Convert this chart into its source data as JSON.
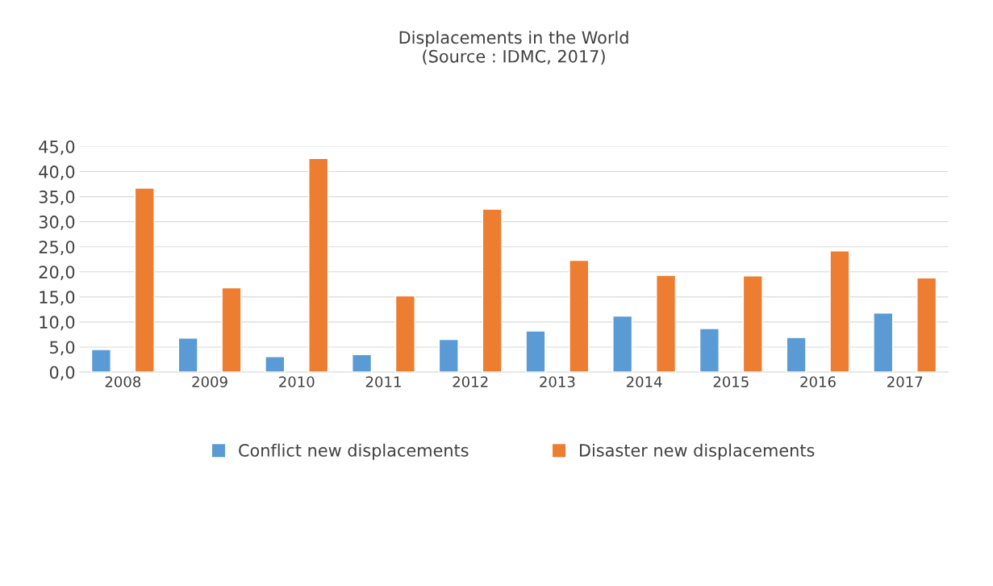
{
  "chart_data": {
    "type": "bar",
    "title": "Displacements in the World\n(Source : IDMC, 2017)",
    "categories": [
      "2008",
      "2009",
      "2010",
      "2011",
      "2012",
      "2013",
      "2014",
      "2015",
      "2016",
      "2017"
    ],
    "series": [
      {
        "name": "Conflict new displacements",
        "color": "#5b9bd5",
        "values": [
          4.5,
          6.8,
          3.1,
          3.5,
          6.5,
          8.2,
          11.2,
          8.7,
          6.9,
          11.8
        ]
      },
      {
        "name": "Disaster new displacements",
        "color": "#ed7d31",
        "values": [
          36.7,
          16.8,
          42.6,
          15.2,
          32.5,
          22.3,
          19.3,
          19.2,
          24.2,
          18.8
        ]
      }
    ],
    "ylim": [
      0,
      45
    ],
    "yticks": [
      {
        "value": 0,
        "label": "0,0"
      },
      {
        "value": 5,
        "label": "5,0"
      },
      {
        "value": 10,
        "label": "10,0"
      },
      {
        "value": 15,
        "label": "15,0"
      },
      {
        "value": 20,
        "label": "20,0"
      },
      {
        "value": 25,
        "label": "25,0"
      },
      {
        "value": 30,
        "label": "30,0"
      },
      {
        "value": 35,
        "label": "35,0"
      },
      {
        "value": 40,
        "label": "40,0"
      },
      {
        "value": 45,
        "label": "45,0"
      }
    ],
    "grid": "y",
    "legend": "bottom"
  }
}
